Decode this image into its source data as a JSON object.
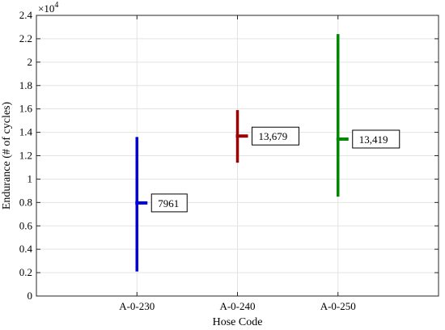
{
  "chart_data": {
    "type": "errorbar",
    "xlabel": "Hose Code",
    "ylabel": "Endurance (# of cycles)",
    "y_multiplier": "×10",
    "y_multiplier_exponent": "4",
    "ylim": [
      0,
      2.4
    ],
    "yticks": [
      0,
      0.2,
      0.4,
      0.6,
      0.8,
      1,
      1.2,
      1.4,
      1.6,
      1.8,
      2,
      2.2,
      2.4
    ],
    "ytick_labels": [
      "0",
      "0.2",
      "0.4",
      "0.6",
      "0.8",
      "1",
      "1.2",
      "1.4",
      "1.6",
      "1.8",
      "2",
      "2.2",
      "2.4"
    ],
    "categories": [
      "A-0-230",
      "A-0-240",
      "A-0-250"
    ],
    "grid": true,
    "series": [
      {
        "category": "A-0-230",
        "mean": 0.7961,
        "low": 0.21,
        "high": 1.36,
        "label": "7961",
        "color": "#0000dd"
      },
      {
        "category": "A-0-240",
        "mean": 1.3679,
        "low": 1.14,
        "high": 1.59,
        "label": "13,679",
        "color": "#990000"
      },
      {
        "category": "A-0-250",
        "mean": 1.3419,
        "low": 0.85,
        "high": 2.24,
        "label": "13,419",
        "color": "#008800"
      }
    ]
  }
}
